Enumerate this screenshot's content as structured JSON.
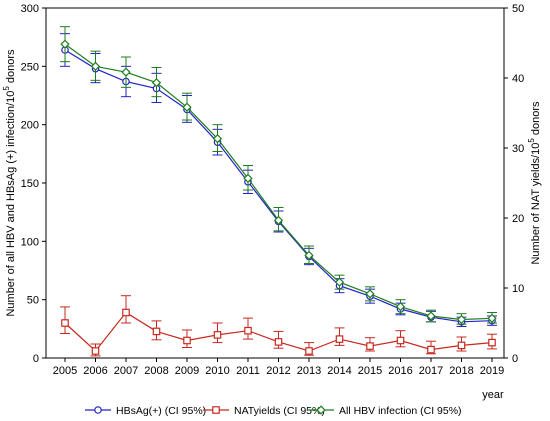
{
  "chart_data": {
    "type": "line",
    "xlabel": "year",
    "ylabel_left": "Number of all HBV and HBsAg (+) infection/10",
    "ylabel_left_sup": "5",
    "ylabel_left_tail": " donors",
    "ylabel_right": "Number of NAT yields/10",
    "ylabel_right_sup": "5",
    "ylabel_right_tail": " donors",
    "ylim_left": [
      0,
      300
    ],
    "ylim_right": [
      0,
      50
    ],
    "yticks_left": [
      "0",
      "50",
      "100",
      "150",
      "200",
      "250",
      "300"
    ],
    "yticks_right": [
      "0",
      "10",
      "20",
      "30",
      "40",
      "50"
    ],
    "categories": [
      "2005",
      "2006",
      "2007",
      "2008",
      "2009",
      "2010",
      "2011",
      "2012",
      "2013",
      "2014",
      "2015",
      "2016",
      "2017",
      "2018",
      "2019"
    ],
    "grid": false,
    "legend_position": "bottom",
    "series": [
      {
        "name": "HBsAg(+) (CI 95%)",
        "axis": "left",
        "color": "#2323c8",
        "marker": "circle",
        "x": [
          "2005",
          "2006",
          "2007",
          "2008",
          "2009",
          "2010",
          "2011",
          "2012",
          "2013",
          "2014",
          "2015",
          "2016",
          "2017",
          "2018",
          "2019"
        ],
        "values": [
          264,
          248,
          237,
          231,
          213,
          185,
          151,
          117,
          87,
          62,
          53,
          42,
          35,
          31,
          32
        ],
        "ci_low": [
          250,
          236,
          224,
          219,
          202,
          174,
          141,
          108,
          80,
          56,
          47,
          37,
          31,
          27,
          28
        ],
        "ci_high": [
          278,
          261,
          250,
          244,
          225,
          196,
          161,
          126,
          94,
          68,
          59,
          47,
          40,
          35,
          36
        ]
      },
      {
        "name": "NATyields (CI 95%)",
        "axis": "right",
        "color": "#c8281e",
        "marker": "square",
        "x": [
          "2005",
          "2006",
          "2007",
          "2008",
          "2009",
          "2010",
          "2011",
          "2012",
          "2013",
          "2014",
          "2015",
          "2016",
          "2017",
          "2018",
          "2019"
        ],
        "values": [
          5.0,
          1.0,
          6.5,
          3.8,
          2.5,
          3.3,
          3.9,
          2.3,
          1.0,
          2.7,
          1.7,
          2.5,
          1.2,
          1.8,
          2.2
        ],
        "ci_low": [
          3.5,
          0.3,
          5.0,
          2.6,
          1.5,
          2.2,
          2.7,
          1.4,
          0.4,
          1.8,
          1.0,
          1.6,
          0.6,
          1.0,
          1.3
        ],
        "ci_high": [
          7.3,
          2.0,
          8.9,
          5.3,
          4.0,
          5.0,
          5.7,
          3.8,
          2.2,
          4.3,
          2.9,
          3.9,
          2.4,
          3.0,
          3.4
        ]
      },
      {
        "name": "All HBV infection (CI 95%)",
        "axis": "left",
        "color": "#1e7d1e",
        "marker": "diamond",
        "x": [
          "2005",
          "2006",
          "2007",
          "2008",
          "2009",
          "2010",
          "2011",
          "2012",
          "2013",
          "2014",
          "2015",
          "2016",
          "2017",
          "2018",
          "2019"
        ],
        "values": [
          269,
          250,
          245,
          236,
          215,
          188,
          154,
          118,
          88,
          65,
          55,
          44,
          36,
          33,
          34
        ],
        "ci_low": [
          254,
          238,
          232,
          224,
          204,
          177,
          144,
          109,
          81,
          59,
          49,
          38,
          31,
          29,
          30
        ],
        "ci_high": [
          284,
          263,
          258,
          249,
          227,
          200,
          165,
          129,
          96,
          71,
          61,
          50,
          41,
          38,
          39
        ]
      }
    ]
  }
}
